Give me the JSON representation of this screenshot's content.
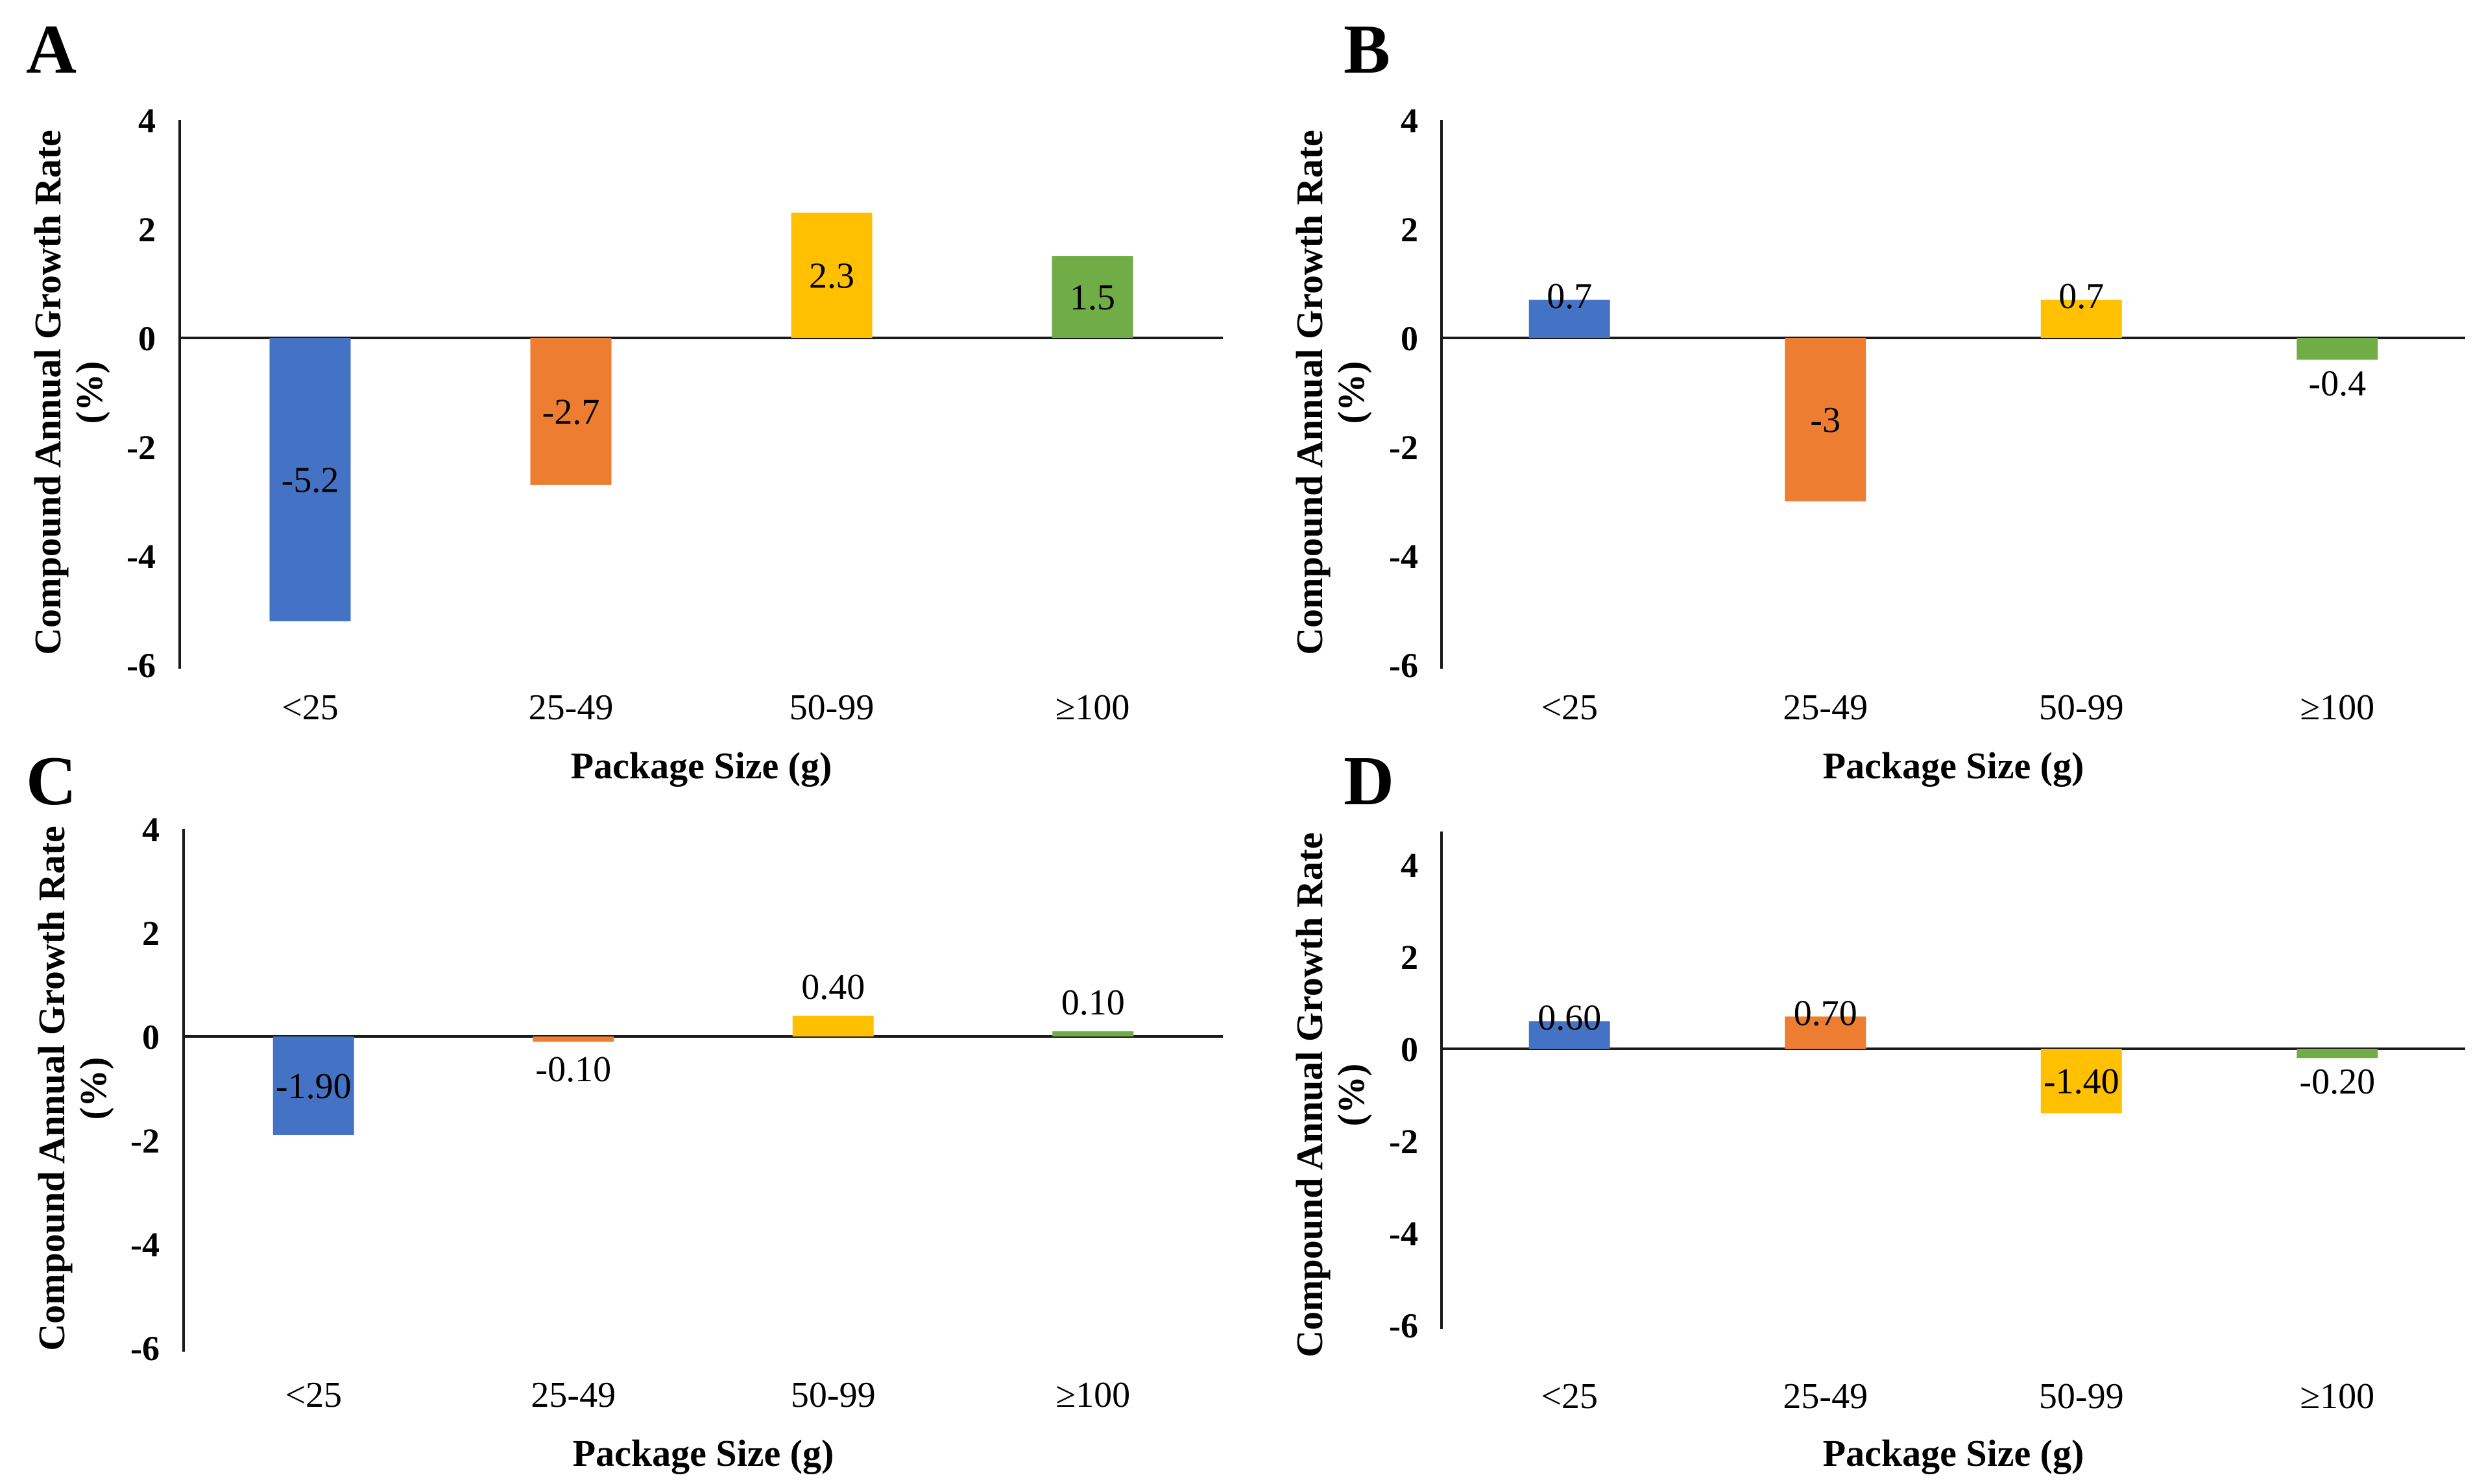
{
  "figure_background": "#ffffff",
  "text_color": "#000000",
  "axis_color": "#1a1a1a",
  "chart_data": [
    {
      "panel": "A",
      "type": "bar",
      "categories": [
        "<25",
        "25-49",
        "50-99",
        "≥100"
      ],
      "values": [
        -5.2,
        -2.7,
        2.3,
        1.5
      ],
      "value_labels": [
        "-5.2",
        "-2.7",
        "2.3",
        "1.5"
      ],
      "xlabel": "Package Size (g)",
      "ylabel": "Compound Annual Growth Rate (%)",
      "ylabel_lines": [
        "Compound Annual Growth Rate",
        "(%)"
      ],
      "ylim": [
        -6,
        4
      ],
      "yticks": [
        4,
        2,
        0,
        -2,
        -4,
        -6
      ],
      "bar_colors": [
        "#4472C4",
        "#ED7D31",
        "#FFC000",
        "#70AD47"
      ],
      "grid": false,
      "legend": false
    },
    {
      "panel": "B",
      "type": "bar",
      "categories": [
        "<25",
        "25-49",
        "50-99",
        "≥100"
      ],
      "values": [
        0.7,
        -3,
        0.7,
        -0.4
      ],
      "value_labels": [
        "0.7",
        "-3",
        "0.7",
        "-0.4"
      ],
      "xlabel": "Package Size (g)",
      "ylabel": "Compound Annual Growth Rate (%)",
      "ylabel_lines": [
        "Compound Annual Growth Rate",
        "(%)"
      ],
      "ylim": [
        -6,
        4
      ],
      "yticks": [
        4,
        2,
        0,
        -2,
        -4,
        -6
      ],
      "bar_colors": [
        "#4472C4",
        "#ED7D31",
        "#FFC000",
        "#70AD47"
      ],
      "grid": false,
      "legend": false
    },
    {
      "panel": "C",
      "type": "bar",
      "categories": [
        "<25",
        "25-49",
        "50-99",
        "≥100"
      ],
      "values": [
        -1.9,
        -0.1,
        0.4,
        0.1
      ],
      "value_labels": [
        "-1.90",
        "-0.10",
        "0.40",
        "0.10"
      ],
      "xlabel": "Package Size (g)",
      "ylabel": "Compound Annual Growth Rate (%)",
      "ylabel_lines": [
        "Compound Annual Growth Rate",
        "(%)"
      ],
      "ylim": [
        -6,
        4
      ],
      "yticks": [
        4,
        2,
        0,
        -2,
        -4,
        -6
      ],
      "bar_colors": [
        "#4472C4",
        "#ED7D31",
        "#FFC000",
        "#70AD47"
      ],
      "grid": false,
      "legend": false
    },
    {
      "panel": "D",
      "type": "bar",
      "categories": [
        "<25",
        "25-49",
        "50-99",
        "≥100"
      ],
      "values": [
        0.6,
        0.7,
        -1.4,
        -0.2
      ],
      "value_labels": [
        "0.60",
        "0.70",
        "-1.40",
        "-0.20"
      ],
      "xlabel": "Package Size (g)",
      "ylabel": "Compound Annual Growth Rate (%)",
      "ylabel_lines": [
        "Compound Annual Growth Rate",
        "(%)"
      ],
      "ylim": [
        -6,
        4
      ],
      "yticks": [
        4,
        2,
        0,
        -2,
        -4,
        -6
      ],
      "bar_colors": [
        "#4472C4",
        "#ED7D31",
        "#FFC000",
        "#70AD47"
      ],
      "grid": false,
      "legend": false
    }
  ]
}
